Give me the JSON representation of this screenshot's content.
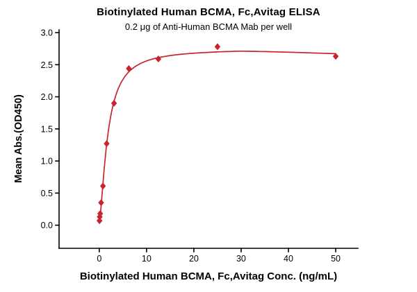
{
  "chart_data": {
    "type": "scatter",
    "title": "Biotinylated Human BCMA, Fc,Avitag ELISA",
    "subtitle": "0.2 μg of Anti-Human BCMA Mab per well",
    "xlabel": "Biotinylated Human BCMA, Fc,Avitag Conc. (ng/mL)",
    "ylabel": "Mean Abs.(OD450)",
    "x": [
      0.049,
      0.098,
      0.195,
      0.39,
      0.78,
      1.563,
      3.125,
      6.25,
      12.5,
      25,
      50
    ],
    "y": [
      0.07,
      0.13,
      0.18,
      0.35,
      0.61,
      1.27,
      1.9,
      2.44,
      2.59,
      2.78,
      2.63
    ],
    "xlim": [
      -8.5,
      54.7
    ],
    "ylim": [
      -0.36,
      3.0
    ],
    "xticks": [
      0,
      10,
      20,
      30,
      40,
      50
    ],
    "xtick_labels": [
      "0",
      "10",
      "20",
      "30",
      "40",
      "50"
    ],
    "yticks": [
      0,
      0.5,
      1,
      1.5,
      2,
      2.5,
      3
    ],
    "ytick_labels": [
      "0.0",
      "0.5",
      "1.0",
      "1.5",
      "2.0",
      "2.5",
      "3.0"
    ],
    "grid": false,
    "legend": "none",
    "colors": {
      "series": "#c9242b",
      "axis": "#000000",
      "text": "#000000"
    },
    "fit": {
      "model": "4PL",
      "a": 0.05,
      "b": 1.5,
      "c": 1.8,
      "d": 2.75,
      "x_start": 0.045,
      "x_end": 50,
      "decline_after": 30,
      "decline_rate": 0.003
    }
  }
}
